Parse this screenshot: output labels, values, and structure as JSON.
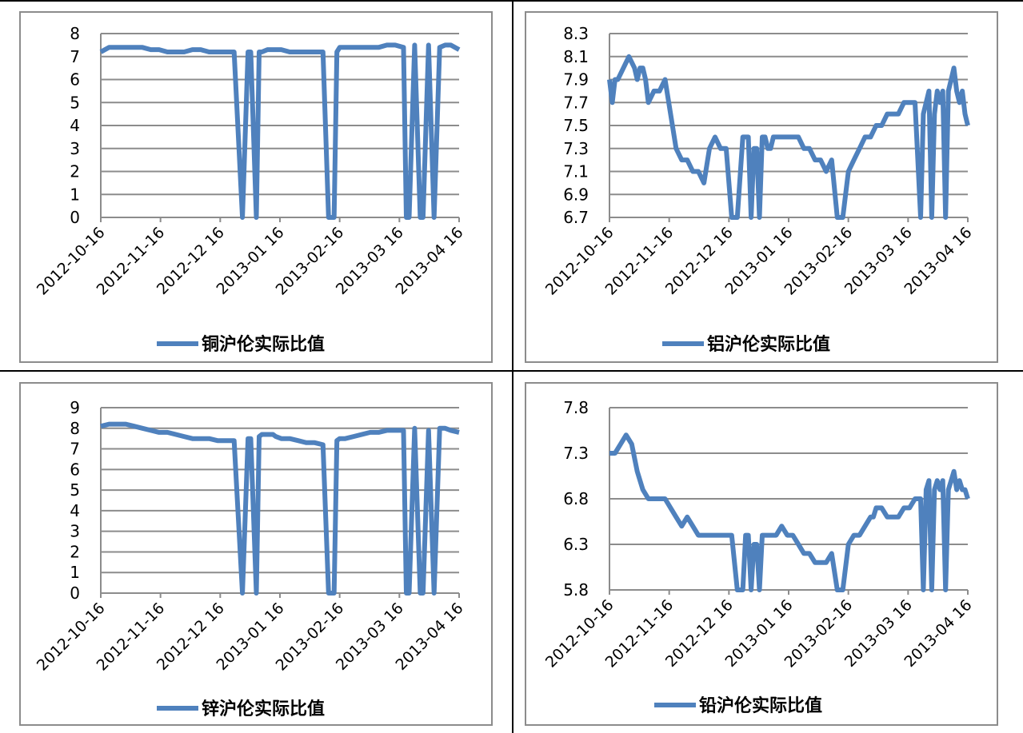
{
  "colors": {
    "series": "#4f81bd",
    "grid": "#8c8c8c",
    "border": "#8c8c8c"
  },
  "chart_data": [
    {
      "type": "line",
      "series": [
        {
          "name": "铜沪伦实际比值"
        }
      ],
      "y_ticks": [
        "8",
        "7",
        "6",
        "5",
        "4",
        "3",
        "2",
        "1",
        "0"
      ],
      "x_ticks": [
        "2012-10-16",
        "2012-11-16",
        "2012-12 16",
        "2013-01 16",
        "2013-02-16",
        "2013-03 16",
        "2013-04 16"
      ],
      "ylim": [
        0,
        8
      ],
      "x": [
        0,
        3,
        6,
        9,
        12,
        15,
        18,
        21,
        24,
        27,
        30,
        33,
        36,
        39,
        42,
        45,
        48,
        51,
        53,
        54,
        56,
        57,
        58,
        60,
        61,
        62,
        63,
        65,
        68,
        71,
        74,
        77,
        80,
        82,
        83,
        84,
        85,
        86,
        87,
        88,
        91,
        94,
        97,
        100,
        103,
        106,
        109,
        110,
        111,
        113,
        115,
        116,
        118,
        120,
        122,
        124,
        126,
        129
      ],
      "values": [
        7.2,
        7.4,
        7.4,
        7.4,
        7.4,
        7.4,
        7.3,
        7.3,
        7.2,
        7.2,
        7.2,
        7.3,
        7.3,
        7.2,
        7.2,
        7.2,
        7.2,
        0,
        7.2,
        7.2,
        0,
        7.2,
        7.2,
        7.3,
        7.3,
        7.3,
        7.3,
        7.3,
        7.2,
        7.2,
        7.2,
        7.2,
        7.2,
        0,
        0,
        0,
        7.2,
        7.4,
        7.4,
        7.4,
        7.4,
        7.4,
        7.4,
        7.4,
        7.5,
        7.5,
        7.4,
        0,
        0,
        7.5,
        0,
        0,
        7.5,
        0,
        7.4,
        7.5,
        7.5,
        7.3
      ]
    },
    {
      "type": "line",
      "series": [
        {
          "name": "铝沪伦实际比值"
        }
      ],
      "y_ticks": [
        "8.3",
        "8.1",
        "7.9",
        "7.7",
        "7.5",
        "7.3",
        "7.1",
        "6.9",
        "6.7"
      ],
      "x_ticks": [
        "2012-10-16",
        "2012-11-16",
        "2012-12 16",
        "2013-01 16",
        "2013-02-16",
        "2013-03 16",
        "2013-04 16"
      ],
      "ylim": [
        6.7,
        8.3
      ],
      "x": [
        0,
        1,
        2,
        3,
        5,
        7,
        9,
        10,
        11,
        12,
        13,
        14,
        16,
        18,
        20,
        22,
        24,
        26,
        27,
        28,
        30,
        32,
        34,
        36,
        38,
        40,
        42,
        44,
        46,
        48,
        49,
        50,
        51,
        52,
        53,
        54,
        55,
        56,
        57,
        58,
        59,
        60,
        61,
        62,
        64,
        66,
        68,
        70,
        72,
        74,
        76,
        78,
        80,
        82,
        83,
        84,
        86,
        88,
        90,
        92,
        94,
        96,
        98,
        100,
        102,
        104,
        106,
        108,
        110,
        112,
        113,
        114,
        115,
        116,
        117,
        118,
        119,
        120,
        121,
        122,
        123,
        124,
        125,
        126,
        127,
        128,
        129
      ],
      "values": [
        7.9,
        7.7,
        7.9,
        7.9,
        8.0,
        8.1,
        8.0,
        7.9,
        8.0,
        8.0,
        7.9,
        7.7,
        7.8,
        7.8,
        7.9,
        7.6,
        7.3,
        7.2,
        7.2,
        7.2,
        7.1,
        7.1,
        7.0,
        7.3,
        7.4,
        7.3,
        7.3,
        6.7,
        6.7,
        7.4,
        7.4,
        7.4,
        6.7,
        7.3,
        7.3,
        6.7,
        7.4,
        7.4,
        7.3,
        7.3,
        7.4,
        7.4,
        7.4,
        7.4,
        7.4,
        7.4,
        7.4,
        7.3,
        7.3,
        7.2,
        7.2,
        7.1,
        7.2,
        6.7,
        6.7,
        6.7,
        7.1,
        7.2,
        7.3,
        7.4,
        7.4,
        7.5,
        7.5,
        7.6,
        7.6,
        7.6,
        7.7,
        7.7,
        7.7,
        6.7,
        7.6,
        7.7,
        7.8,
        6.7,
        7.6,
        7.8,
        7.7,
        7.8,
        6.7,
        7.8,
        7.9,
        8.0,
        7.8,
        7.7,
        7.8,
        7.6,
        7.5
      ]
    },
    {
      "type": "line",
      "series": [
        {
          "name": "锌沪伦实际比值"
        }
      ],
      "y_ticks": [
        "9",
        "8",
        "7",
        "6",
        "5",
        "4",
        "3",
        "2",
        "1",
        "0"
      ],
      "x_ticks": [
        "2012-10-16",
        "2012-11-16",
        "2012-12 16",
        "2013-01 16",
        "2013-02-16",
        "2013-03 16",
        "2013-04 16"
      ],
      "ylim": [
        0,
        9
      ],
      "x": [
        0,
        3,
        6,
        9,
        12,
        15,
        18,
        21,
        24,
        27,
        30,
        33,
        36,
        39,
        42,
        45,
        48,
        51,
        53,
        54,
        56,
        57,
        58,
        60,
        61,
        62,
        63,
        65,
        68,
        71,
        74,
        77,
        80,
        82,
        83,
        84,
        85,
        86,
        87,
        88,
        91,
        94,
        97,
        100,
        103,
        106,
        109,
        110,
        111,
        113,
        115,
        116,
        118,
        120,
        122,
        124,
        126,
        129
      ],
      "values": [
        8.1,
        8.2,
        8.2,
        8.2,
        8.1,
        8.0,
        7.9,
        7.8,
        7.8,
        7.7,
        7.6,
        7.5,
        7.5,
        7.5,
        7.4,
        7.4,
        7.4,
        0,
        7.5,
        7.5,
        0,
        7.6,
        7.7,
        7.7,
        7.7,
        7.7,
        7.6,
        7.5,
        7.5,
        7.4,
        7.3,
        7.3,
        7.2,
        0,
        0,
        0,
        7.4,
        7.5,
        7.5,
        7.5,
        7.6,
        7.7,
        7.8,
        7.8,
        7.9,
        7.9,
        7.9,
        0,
        0,
        8.0,
        0,
        0,
        7.9,
        0,
        8.0,
        8.0,
        7.9,
        7.8
      ]
    },
    {
      "type": "line",
      "series": [
        {
          "name": "铅沪伦实际比值"
        }
      ],
      "y_ticks": [
        "7.8",
        "7.3",
        "6.8",
        "6.3",
        "5.8"
      ],
      "x_ticks": [
        "2012-10-16",
        "2012-11-16",
        "2012-12 16",
        "2013-01 16",
        "2013-02-16",
        "2013-03 16",
        "2013-04 16"
      ],
      "ylim": [
        5.8,
        7.8
      ],
      "x": [
        0,
        2,
        4,
        6,
        8,
        10,
        12,
        14,
        16,
        18,
        20,
        22,
        24,
        26,
        28,
        30,
        32,
        34,
        36,
        38,
        40,
        42,
        44,
        46,
        48,
        49,
        50,
        51,
        52,
        53,
        54,
        55,
        56,
        57,
        58,
        60,
        62,
        64,
        66,
        68,
        70,
        72,
        74,
        76,
        78,
        80,
        82,
        83,
        84,
        86,
        88,
        90,
        92,
        94,
        95,
        96,
        98,
        100,
        102,
        104,
        106,
        108,
        110,
        112,
        113,
        114,
        115,
        116,
        117,
        118,
        119,
        120,
        121,
        122,
        123,
        124,
        125,
        126,
        127,
        128,
        129
      ],
      "values": [
        7.3,
        7.3,
        7.4,
        7.5,
        7.4,
        7.1,
        6.9,
        6.8,
        6.8,
        6.8,
        6.8,
        6.7,
        6.6,
        6.5,
        6.6,
        6.5,
        6.4,
        6.4,
        6.4,
        6.4,
        6.4,
        6.4,
        6.4,
        5.8,
        5.8,
        6.4,
        6.4,
        5.8,
        6.3,
        6.3,
        5.8,
        6.4,
        6.4,
        6.4,
        6.4,
        6.4,
        6.5,
        6.4,
        6.4,
        6.3,
        6.2,
        6.2,
        6.1,
        6.1,
        6.1,
        6.2,
        5.8,
        5.8,
        5.8,
        6.3,
        6.4,
        6.4,
        6.5,
        6.6,
        6.6,
        6.7,
        6.7,
        6.6,
        6.6,
        6.6,
        6.7,
        6.7,
        6.8,
        6.8,
        5.8,
        6.9,
        7.0,
        5.8,
        6.9,
        7.0,
        6.9,
        7.0,
        5.8,
        6.9,
        7.0,
        7.1,
        6.9,
        7.0,
        6.9,
        6.9,
        6.8
      ]
    }
  ]
}
